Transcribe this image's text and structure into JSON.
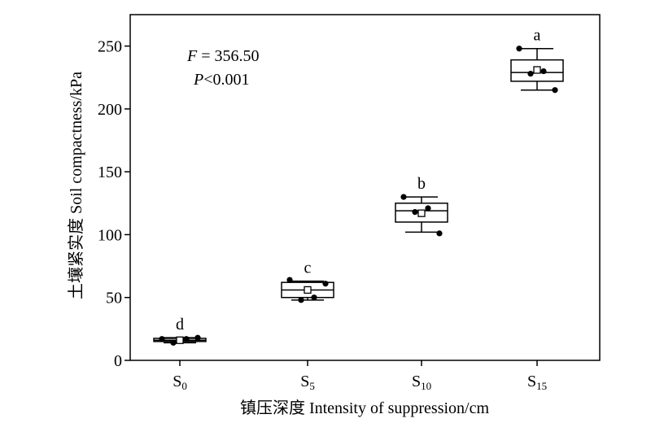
{
  "chart_data": {
    "type": "box",
    "ylabel": "土壤紧实度  Soil compactness/kPa",
    "xlabel": "镇压深度  Intensity of suppression/cm",
    "ylim": [
      0,
      275
    ],
    "yticks": [
      0,
      50,
      100,
      150,
      200,
      250
    ],
    "categories": [
      {
        "base": "S",
        "sub": "0"
      },
      {
        "base": "S",
        "sub": "5"
      },
      {
        "base": "S",
        "sub": "10"
      },
      {
        "base": "S",
        "sub": "15"
      }
    ],
    "annotation": {
      "f_label": "F",
      "f_text": " = 356.50",
      "p_label": "P",
      "p_text": "<0.001"
    },
    "boxes": [
      {
        "letter": "d",
        "whisker_low": 14,
        "q1": 15,
        "median": 16,
        "q3": 17.5,
        "whisker_high": 18,
        "mean": 16,
        "points": [
          17,
          14,
          17,
          18
        ]
      },
      {
        "letter": "c",
        "whisker_low": 48,
        "q1": 50,
        "median": 56,
        "q3": 62,
        "whisker_high": 63,
        "mean": 56,
        "points": [
          64,
          48,
          50,
          61
        ]
      },
      {
        "letter": "b",
        "whisker_low": 102,
        "q1": 110,
        "median": 119,
        "q3": 125,
        "whisker_high": 130,
        "mean": 117,
        "points": [
          130,
          118,
          121,
          101
        ]
      },
      {
        "letter": "a",
        "whisker_low": 215,
        "q1": 222,
        "median": 229,
        "q3": 239,
        "whisker_high": 248,
        "mean": 231,
        "points": [
          248,
          228,
          230,
          215
        ]
      }
    ]
  }
}
